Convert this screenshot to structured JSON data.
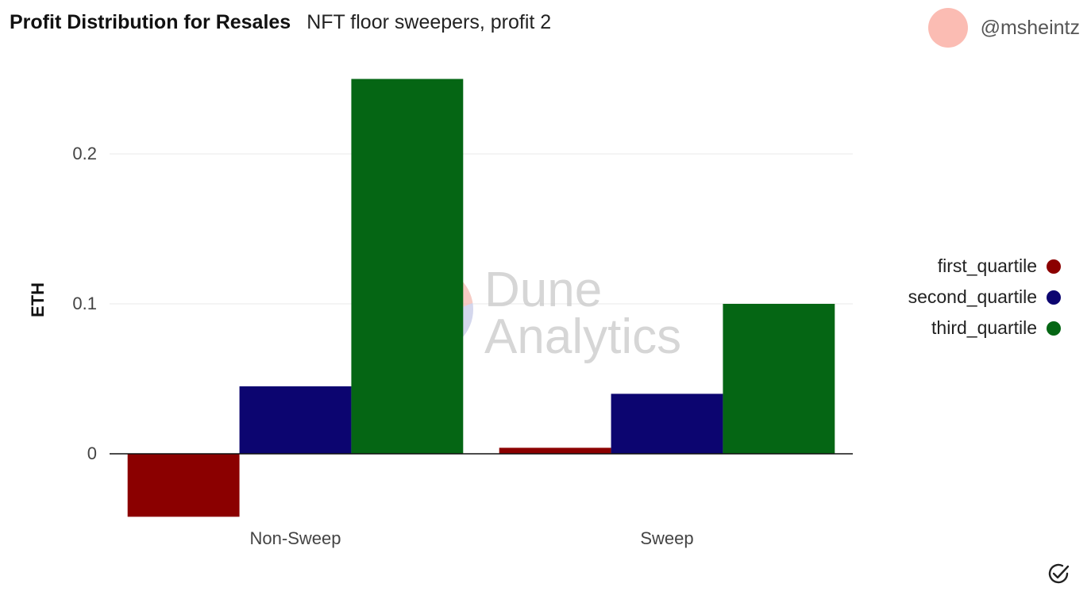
{
  "header": {
    "title": "Profit Distribution for Resales",
    "subtitle": "NFT floor sweepers, profit 2"
  },
  "user": {
    "handle": "@msheintz"
  },
  "watermark": {
    "line1": "Dune",
    "line2": "Analytics"
  },
  "icons": {
    "verified": "check-circle-icon"
  },
  "chart_data": {
    "type": "bar",
    "categories": [
      "Non-Sweep",
      "Sweep"
    ],
    "series": [
      {
        "name": "first_quartile",
        "values": [
          -0.042,
          0.004
        ],
        "color": "#8b0000"
      },
      {
        "name": "second_quartile",
        "values": [
          0.045,
          0.04
        ],
        "color": "#0c0570"
      },
      {
        "name": "third_quartile",
        "values": [
          0.25,
          0.1
        ],
        "color": "#056614"
      }
    ],
    "ylabel": "ETH",
    "xlabel": "",
    "yticks": [
      0,
      0.1,
      0.2
    ],
    "ytick_labels": [
      "0",
      "0.1",
      "0.2"
    ],
    "ylim": [
      -0.05,
      0.26
    ],
    "grid": true,
    "legend_position": "right"
  }
}
